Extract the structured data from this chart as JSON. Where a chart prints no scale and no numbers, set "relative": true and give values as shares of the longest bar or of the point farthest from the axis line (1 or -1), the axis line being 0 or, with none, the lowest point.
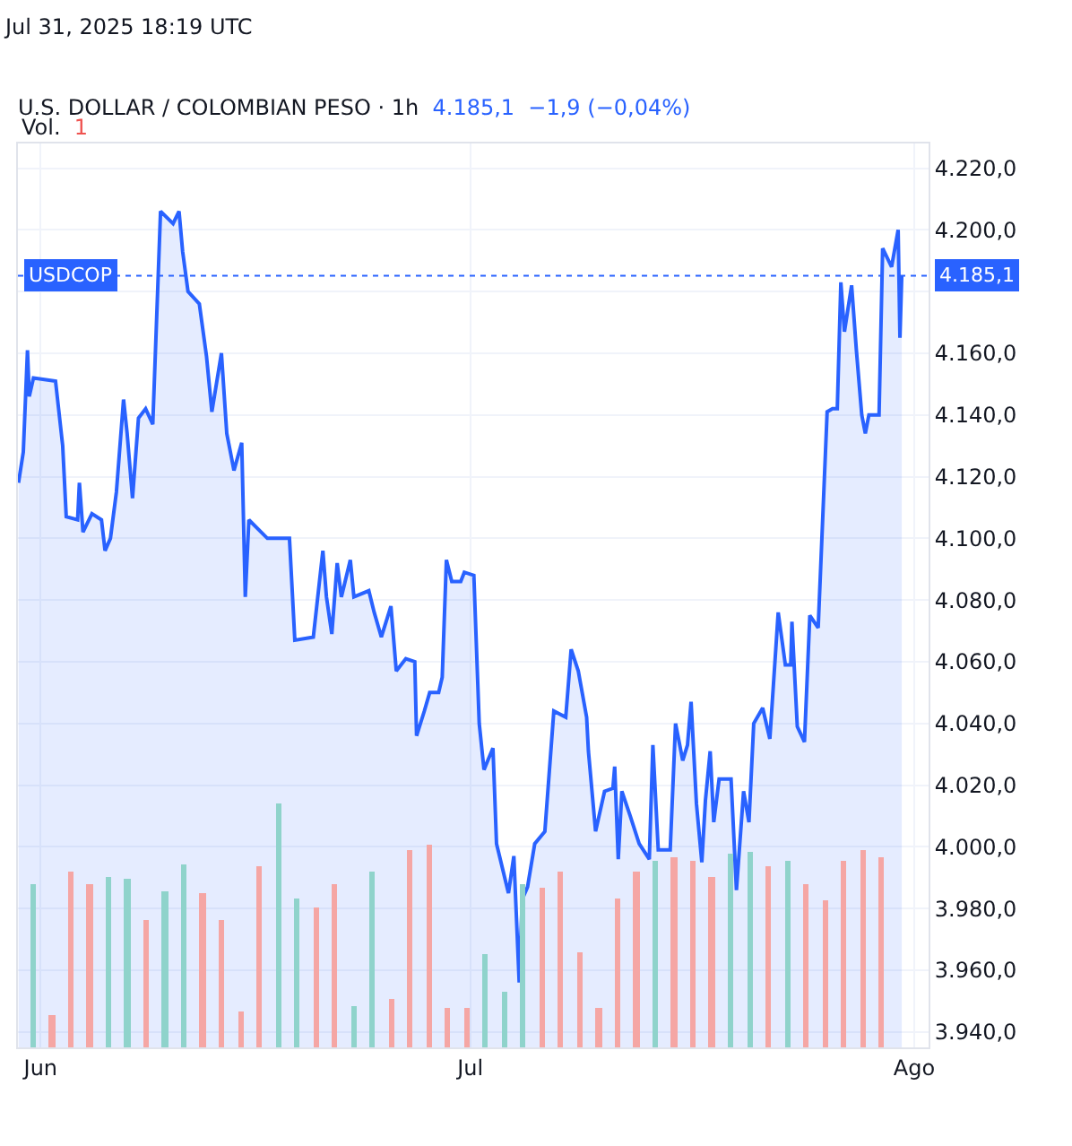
{
  "chart_data": [
    {
      "type": "area",
      "title": "U.S. DOLLAR / COLOMBIAN PESO · 1h",
      "subtitle": "4.185,1  −1,9 (−0,04%)",
      "annotations": [
        "Jul 31, 2025 18:19 UTC",
        "4.185,1"
      ],
      "x": [
        "2025-05-30T11:00",
        "2025-05-30T19:00",
        "2025-05-31T02:00",
        "2025-05-31T05:00",
        "2025-05-31T12:00",
        "2025-06-02T01:00",
        "2025-06-02T13:00",
        "2025-06-02T19:00",
        "2025-06-03T14:00",
        "2025-06-03T17:00",
        "2025-06-03T23:00",
        "2025-06-04T14:00",
        "2025-06-05T06:00",
        "2025-06-05T12:00",
        "2025-06-05T21:00",
        "2025-06-06T07:00",
        "2025-06-06T19:00",
        "2025-06-07T01:00",
        "2025-06-07T10:00",
        "2025-06-07T20:00",
        "2025-06-08T08:00",
        "2025-06-08T20:00",
        "2025-06-09T09:00",
        "2025-06-10T06:00",
        "2025-06-10T16:00",
        "2025-06-10T22:00",
        "2025-06-11T07:00",
        "2025-06-12T02:00",
        "2025-06-12T14:00",
        "2025-06-12T23:00",
        "2025-06-13T15:00",
        "2025-06-14T00:00",
        "2025-06-14T12:00",
        "2025-06-15T01:00",
        "2025-06-15T07:00",
        "2025-06-15T13:00",
        "2025-06-16T20:00",
        "2025-06-17T11:00",
        "2025-06-18T09:00",
        "2025-06-18T18:00",
        "2025-06-20T01:00",
        "2025-06-20T17:00",
        "2025-06-20T23:00",
        "2025-06-21T08:00",
        "2025-06-21T17:00",
        "2025-06-22T00:00",
        "2025-06-22T15:00",
        "2025-06-22T21:00",
        "2025-06-23T22:00",
        "2025-06-24T07:00",
        "2025-06-24T19:00",
        "2025-06-25T11:00",
        "2025-06-25T20:00",
        "2025-06-26T12:00",
        "2025-06-27T03:00",
        "2025-06-27T06:00",
        "2025-06-27T19:00",
        "2025-06-28T04:00",
        "2025-06-28T19:00",
        "2025-06-29T01:00",
        "2025-06-29T08:00",
        "2025-06-29T17:00",
        "2025-06-30T08:00",
        "2025-06-30T14:00",
        "2025-07-01T06:00",
        "2025-07-01T15:00",
        "2025-07-01T23:00",
        "2025-07-02T14:00",
        "2025-07-02T20:00",
        "2025-07-03T16:00",
        "2025-07-04T01:00",
        "2025-07-04T10:00",
        "2025-07-04T15:00",
        "2025-07-05T00:00",
        "2025-07-05T12:00",
        "2025-07-06T05:00",
        "2025-07-06T20:00",
        "2025-07-07T16:00",
        "2025-07-08T01:00",
        "2025-07-08T13:00",
        "2025-07-09T03:00",
        "2025-07-09T06:00",
        "2025-07-09T18:00",
        "2025-07-10T09:00",
        "2025-07-10T23:00",
        "2025-07-11T02:00",
        "2025-07-11T08:00",
        "2025-07-11T14:00",
        "2025-07-12T04:00",
        "2025-07-12T19:00",
        "2025-07-13T12:00",
        "2025-07-13T18:00",
        "2025-07-14T03:00",
        "2025-07-14T23:00",
        "2025-07-15T08:00",
        "2025-07-15T20:00",
        "2025-07-16T04:00",
        "2025-07-16T10:00",
        "2025-07-16T19:00",
        "2025-07-17T04:00",
        "2025-07-17T10:00",
        "2025-07-17T18:00",
        "2025-07-18T00:00",
        "2025-07-18T09:00",
        "2025-07-19T05:00",
        "2025-07-19T14:00",
        "2025-07-20T02:00",
        "2025-07-20T11:00",
        "2025-07-20T19:00",
        "2025-07-21T10:00",
        "2025-07-21T22:00",
        "2025-07-22T12:00",
        "2025-07-23T00:00",
        "2025-07-23T09:00",
        "2025-07-23T11:00",
        "2025-07-23T20:00",
        "2025-07-24T08:00",
        "2025-07-24T17:00",
        "2025-07-25T07:00",
        "2025-07-25T22:00",
        "2025-07-26T07:00",
        "2025-07-26T15:00",
        "2025-07-26T21:00",
        "2025-07-27T03:00",
        "2025-07-27T15:00",
        "2025-07-27T23:00",
        "2025-07-28T08:00",
        "2025-07-28T14:00",
        "2025-07-28T20:00",
        "2025-07-29T13:00",
        "2025-07-29T19:00",
        "2025-07-30T10:00",
        "2025-07-30T21:00",
        "2025-07-31T00:00",
        "2025-07-31T03:00"
      ],
      "series": [
        {
          "color": "#2962ff",
          "values": [
            4118,
            4128,
            4161,
            4146,
            4152,
            4151,
            4130,
            4107,
            4106,
            4118,
            4102,
            4108,
            4106,
            4096,
            4100,
            4115,
            4145,
            4134,
            4113,
            4139,
            4142,
            4137,
            4206,
            4202,
            4206,
            4193,
            4180,
            4176,
            4159,
            4141,
            4160,
            4134,
            4122,
            4131,
            4081,
            4106,
            4100,
            4100,
            4100,
            4067,
            4068,
            4096,
            4081,
            4069,
            4092,
            4081,
            4093,
            4081,
            4083,
            4076,
            4068,
            4078,
            4057,
            4061,
            4060,
            4036,
            4044,
            4050,
            4050,
            4055,
            4093,
            4086,
            4086,
            4089,
            4088,
            4040,
            4025,
            4032,
            4001,
            3985,
            3997,
            3956,
            3983,
            3987,
            4001,
            4005,
            4044,
            4042,
            4064,
            4057,
            4042,
            4031,
            4005,
            4018,
            4019,
            4026,
            3996,
            4018,
            4010,
            4001,
            3996,
            4033,
            3999,
            3999,
            4040,
            4028,
            4033,
            4047,
            4014,
            3995,
            4015,
            4031,
            4008,
            4022,
            4022,
            3986,
            4018,
            4008,
            4040,
            4045,
            4035,
            4076,
            4059,
            4059,
            4073,
            4039,
            4034,
            4075,
            4071,
            4141,
            4142,
            4142,
            4183,
            4167,
            4182,
            4161,
            4140,
            4134,
            4140,
            4140,
            4194,
            4188,
            4200,
            4165,
            4185
          ]
        }
      ],
      "xlim": [
        "2025-05-30T10:00",
        "2025-08-02T00:00"
      ],
      "xticks": [
        {
          "value": "2025-06-01",
          "label": "Jun"
        },
        {
          "value": "2025-07-01",
          "label": "Jul"
        },
        {
          "value": "2025-08-01",
          "label": "Ago"
        }
      ],
      "ylim": [
        3935,
        4228
      ],
      "yticks": [
        {
          "value": 3940,
          "label": "3.940,0"
        },
        {
          "value": 3960,
          "label": "3.960,0"
        },
        {
          "value": 3980,
          "label": "3.980,0"
        },
        {
          "value": 4000,
          "label": "4.000,0"
        },
        {
          "value": 4020,
          "label": "4.020,0"
        },
        {
          "value": 4040,
          "label": "4.040,0"
        },
        {
          "value": 4060,
          "label": "4.060,0"
        },
        {
          "value": 4080,
          "label": "4.080,0"
        },
        {
          "value": 4100,
          "label": "4.100,0"
        },
        {
          "value": 4120,
          "label": "4.120,0"
        },
        {
          "value": 4140,
          "label": "4.140,0"
        },
        {
          "value": 4160,
          "label": "4.160,0"
        },
        {
          "value": 4180,
          "label": null
        },
        {
          "value": 4200,
          "label": "4.200,0"
        },
        {
          "value": 4220,
          "label": "4.220,0"
        }
      ],
      "ref_lines": [
        {
          "axis": "y",
          "value": 4185.1,
          "label": "USDCOP",
          "color": "#2962ff",
          "line_style": "dotted"
        }
      ],
      "grid": true,
      "marker": "none",
      "line_style": "solid"
    },
    {
      "type": "bar",
      "title": "Vol.",
      "annotations": [
        "1"
      ],
      "relative": true,
      "categories": [
        null,
        null,
        null,
        null,
        null,
        null,
        null,
        null,
        null,
        null,
        null,
        null,
        null,
        null,
        null,
        null,
        null,
        null,
        null,
        null,
        null,
        null,
        null,
        null,
        null,
        null,
        null,
        null,
        null,
        null,
        null,
        null,
        null,
        null,
        null,
        null,
        null,
        null,
        null,
        null,
        null,
        null,
        null,
        null,
        null,
        null
      ],
      "values": [
        0.67,
        0.13,
        0.72,
        0.67,
        0.7,
        0.69,
        0.52,
        0.64,
        0.75,
        0.63,
        0.52,
        0.15,
        0.74,
        1,
        0.61,
        0.57,
        0.67,
        0.17,
        0.72,
        0.2,
        0.81,
        0.83,
        0.16,
        0.16,
        0.38,
        0.23,
        0.67,
        0.65,
        0.72,
        0.39,
        0.16,
        0.61,
        0.72,
        0.76,
        0.78,
        0.76,
        0.7,
        0.79,
        0.8,
        0.74,
        0.76,
        0.67,
        0.6,
        0.76,
        0.81,
        0.78
      ],
      "colors": [
        "#8fd3cb",
        "#f5a6a4",
        "#f5a6a4",
        "#f5a6a4",
        "#8fd3cb",
        "#8fd3cb",
        "#f5a6a4",
        "#8fd3cb",
        "#8fd3cb",
        "#f5a6a4",
        "#f5a6a4",
        "#f5a6a4",
        "#f5a6a4",
        "#8fd3cb",
        "#8fd3cb",
        "#f5a6a4",
        "#f5a6a4",
        "#8fd3cb",
        "#8fd3cb",
        "#f5a6a4",
        "#f5a6a4",
        "#f5a6a4",
        "#f5a6a4",
        "#f5a6a4",
        "#8fd3cb",
        "#8fd3cb",
        "#8fd3cb",
        "#f5a6a4",
        "#f5a6a4",
        "#f5a6a4",
        "#f5a6a4",
        "#f5a6a4",
        "#f5a6a4",
        "#8fd3cb",
        "#f5a6a4",
        "#f5a6a4",
        "#f5a6a4",
        "#8fd3cb",
        "#8fd3cb",
        "#f5a6a4",
        "#8fd3cb",
        "#f5a6a4",
        "#f5a6a4",
        "#f5a6a4",
        "#f5a6a4",
        "#f5a6a4"
      ]
    }
  ]
}
